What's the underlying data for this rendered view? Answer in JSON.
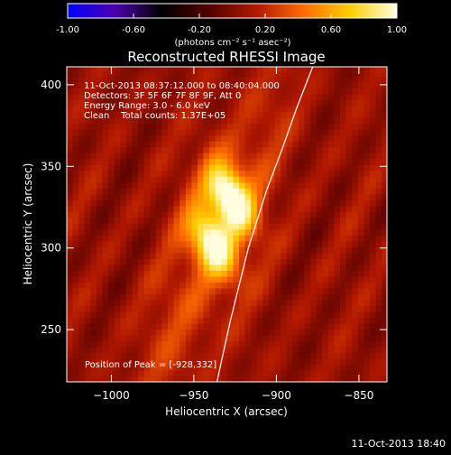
{
  "figure": {
    "title": "Reconstructed RHESSI Image",
    "annotation_lines": [
      "11-Oct-2013 08:37:12.000 to 08:40:04.000",
      "Detectors: 3F 5F 6F 7F 8F 9F, Att 0",
      "Energy Range: 3.0 - 6.0 keV",
      "Clean    Total counts: 1.37E+05"
    ],
    "peak_label": "Position of Peak = [-928,332]",
    "timestamp": "11-Oct-2013 18:40"
  },
  "colorbar": {
    "range": [
      -1.0,
      1.0
    ],
    "ticks": [
      -1.0,
      -0.6,
      -0.2,
      0.2,
      0.6,
      1.0
    ],
    "tick_labels": [
      "-1.00",
      "-0.60",
      "-0.20",
      "0.20",
      "0.60",
      "1.00"
    ],
    "unit_label": "(photons cm⁻² s⁻¹ asec⁻²)",
    "colormap_stops": [
      "#0000ff",
      "#4b00b0",
      "#000000",
      "#520000",
      "#b01800",
      "#ff6a00",
      "#ffd000",
      "#ffffe0"
    ]
  },
  "chart_data": {
    "type": "heatmap",
    "title": "Reconstructed RHESSI Image",
    "xlabel": "Heliocentric X (arcsec)",
    "ylabel": "Heliocentric Y (arcsec)",
    "xlim": [
      -1027,
      -833
    ],
    "ylim": [
      218,
      411
    ],
    "x_ticks": [
      -1000,
      -950,
      -900,
      -850
    ],
    "x_tick_labels": [
      "−1000",
      "−950",
      "−900",
      "−850"
    ],
    "y_ticks": [
      250,
      300,
      350,
      400
    ],
    "y_tick_labels": [
      "250",
      "300",
      "350",
      "400"
    ],
    "peak": [
      -928,
      332
    ],
    "sources": [
      {
        "x": -928,
        "y": 332,
        "peak_value": 1.0
      },
      {
        "x": -939,
        "y": 304,
        "peak_value": 0.85
      }
    ],
    "limb_curve": [
      [
        -936,
        218
      ],
      [
        -928,
        255
      ],
      [
        -917,
        300
      ],
      [
        -906,
        335
      ],
      [
        -896,
        362
      ],
      [
        -888,
        385
      ],
      [
        -878,
        411
      ]
    ]
  }
}
